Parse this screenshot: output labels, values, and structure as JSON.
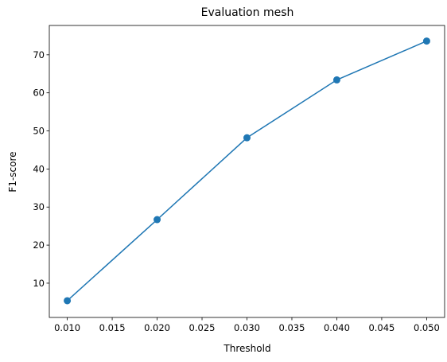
{
  "chart_data": {
    "type": "line",
    "title": "Evaluation mesh",
    "xlabel": "Threshold",
    "ylabel": "F1-score",
    "x": [
      0.01,
      0.02,
      0.03,
      0.04,
      0.05
    ],
    "series": [
      {
        "values": [
          5.4,
          26.7,
          48.2,
          63.4,
          73.6
        ],
        "color": "#1f77b4",
        "marker": "circle"
      }
    ],
    "xlim": [
      0.008,
      0.052
    ],
    "ylim": [
      1.0,
      77.7
    ],
    "xticks": [
      0.01,
      0.015,
      0.02,
      0.025,
      0.03,
      0.035,
      0.04,
      0.045,
      0.05
    ],
    "xtick_labels": [
      "0.010",
      "0.015",
      "0.020",
      "0.025",
      "0.030",
      "0.035",
      "0.040",
      "0.045",
      "0.050"
    ],
    "yticks": [
      10,
      20,
      30,
      40,
      50,
      60,
      70
    ],
    "ytick_labels": [
      "10",
      "20",
      "30",
      "40",
      "50",
      "60",
      "70"
    ],
    "grid": false,
    "legend": false
  }
}
